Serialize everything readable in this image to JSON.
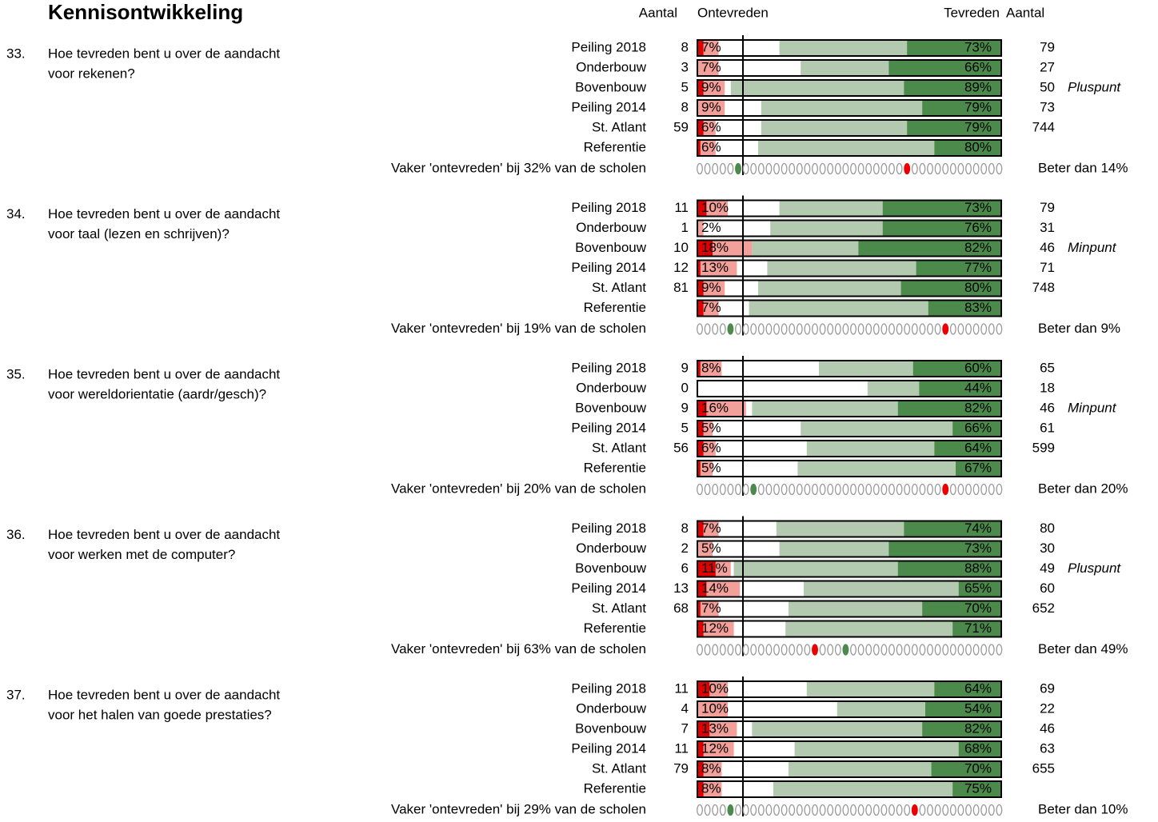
{
  "chart_data": {
    "type": "bar",
    "title": "Kennisontwikkeling",
    "header": {
      "n_left": "Aantal",
      "unsat": "Ontevreden",
      "sat": "Tevreden",
      "n_right": "Aantal"
    },
    "xlim": [
      0,
      100
    ],
    "reference_line": 15,
    "dots": 40,
    "colors": {
      "very_unsat": "#e00000",
      "unsat": "#f4a09a",
      "sat": "#b3c9b0",
      "very_sat": "#4b8a4b",
      "green_dot": "#4b8a4b",
      "red_dot": "#ee0000"
    },
    "questions": [
      {
        "number": "33.",
        "lines": [
          "Hoe tevreden bent u over de aandacht",
          "voor rekenen?"
        ],
        "footer": "Vaker 'ontevreden' bij 32% van de scholen",
        "better": "Beter dan 14%",
        "green_dot": 5,
        "red_dot": 27,
        "rows": [
          {
            "label": "Peiling 2018",
            "n_unsat": 8,
            "very_unsat": 2,
            "unsat": 7,
            "unsat_label": "7%",
            "sat": 73,
            "sat_label": "73%",
            "very_sat": 31,
            "n": 79,
            "note": null
          },
          {
            "label": "Onderbouw",
            "n_unsat": 3,
            "very_unsat": 0,
            "unsat": 7,
            "unsat_label": "7%",
            "sat": 66,
            "sat_label": "66%",
            "very_sat": 37,
            "n": 27,
            "note": null
          },
          {
            "label": "Bovenbouw",
            "n_unsat": 5,
            "very_unsat": 2,
            "unsat": 9,
            "unsat_label": "9%",
            "sat": 89,
            "sat_label": "89%",
            "very_sat": 32,
            "n": 50,
            "note": "Pluspunt"
          },
          {
            "label": "Peiling 2014",
            "n_unsat": 8,
            "very_unsat": 0,
            "unsat": 9,
            "unsat_label": "9%",
            "sat": 79,
            "sat_label": "79%",
            "very_sat": 26,
            "n": 73,
            "note": null
          },
          {
            "label": "St. Atlant",
            "n_unsat": 59,
            "very_unsat": 2,
            "unsat": 6,
            "unsat_label": "6%",
            "sat": 79,
            "sat_label": "79%",
            "very_sat": 31,
            "n": 744,
            "note": null
          },
          {
            "label": "Referentie",
            "n_unsat": null,
            "very_unsat": 1,
            "unsat": 6,
            "unsat_label": "6%",
            "sat": 80,
            "sat_label": "80%",
            "very_sat": 22,
            "n": null,
            "note": null
          }
        ]
      },
      {
        "number": "34.",
        "lines": [
          "Hoe tevreden bent u over de aandacht",
          "voor taal (lezen en schrijven)?"
        ],
        "footer": "Vaker 'ontevreden' bij 19% van de scholen",
        "better": "Beter dan 9%",
        "green_dot": 4,
        "red_dot": 32,
        "rows": [
          {
            "label": "Peiling 2018",
            "n_unsat": 11,
            "very_unsat": 3,
            "unsat": 10,
            "unsat_label": "10%",
            "sat": 73,
            "sat_label": "73%",
            "very_sat": 39,
            "n": 79,
            "note": null
          },
          {
            "label": "Onderbouw",
            "n_unsat": 1,
            "very_unsat": 0,
            "unsat": 2,
            "unsat_label": "2%",
            "sat": 76,
            "sat_label": "76%",
            "very_sat": 39,
            "n": 31,
            "note": null
          },
          {
            "label": "Bovenbouw",
            "n_unsat": 10,
            "very_unsat": 5,
            "unsat": 18,
            "unsat_label": "18%",
            "sat": 82,
            "sat_label": "82%",
            "very_sat": 47,
            "n": 46,
            "note": "Minpunt"
          },
          {
            "label": "Peiling 2014",
            "n_unsat": 12,
            "very_unsat": 1,
            "unsat": 13,
            "unsat_label": "13%",
            "sat": 77,
            "sat_label": "77%",
            "very_sat": 28,
            "n": 71,
            "note": null
          },
          {
            "label": "St. Atlant",
            "n_unsat": 81,
            "very_unsat": 2,
            "unsat": 9,
            "unsat_label": "9%",
            "sat": 80,
            "sat_label": "80%",
            "very_sat": 33,
            "n": 748,
            "note": null
          },
          {
            "label": "Referentie",
            "n_unsat": null,
            "very_unsat": 2,
            "unsat": 7,
            "unsat_label": "7%",
            "sat": 83,
            "sat_label": "83%",
            "very_sat": 24,
            "n": null,
            "note": null
          }
        ]
      },
      {
        "number": "35.",
        "lines": [
          "Hoe tevreden bent u over de aandacht",
          "voor wereldorientatie (aardr/gesch)?"
        ],
        "footer": "Vaker 'ontevreden' bij 20% van de scholen",
        "better": "Beter dan 20%",
        "green_dot": 7,
        "red_dot": 32,
        "rows": [
          {
            "label": "Peiling 2018",
            "n_unsat": 9,
            "very_unsat": 1,
            "unsat": 8,
            "unsat_label": "8%",
            "sat": 60,
            "sat_label": "60%",
            "very_sat": 29,
            "n": 65,
            "note": null
          },
          {
            "label": "Onderbouw",
            "n_unsat": 0,
            "very_unsat": 0,
            "unsat": null,
            "unsat_label": null,
            "sat": 44,
            "sat_label": "44%",
            "very_sat": 27,
            "n": 18,
            "note": null
          },
          {
            "label": "Bovenbouw",
            "n_unsat": 9,
            "very_unsat": 3,
            "unsat": 16,
            "unsat_label": "16%",
            "sat": 82,
            "sat_label": "82%",
            "very_sat": 34,
            "n": 46,
            "note": "Minpunt"
          },
          {
            "label": "Peiling 2014",
            "n_unsat": 5,
            "very_unsat": 2,
            "unsat": 5,
            "unsat_label": "5%",
            "sat": 66,
            "sat_label": "66%",
            "very_sat": 16,
            "n": 61,
            "note": null
          },
          {
            "label": "St. Atlant",
            "n_unsat": 56,
            "very_unsat": 2,
            "unsat": 6,
            "unsat_label": "6%",
            "sat": 64,
            "sat_label": "64%",
            "very_sat": 22,
            "n": 599,
            "note": null
          },
          {
            "label": "Referentie",
            "n_unsat": null,
            "very_unsat": 1,
            "unsat": 5,
            "unsat_label": "5%",
            "sat": 67,
            "sat_label": "67%",
            "very_sat": 15,
            "n": null,
            "note": null
          }
        ]
      },
      {
        "number": "36.",
        "lines": [
          "Hoe tevreden bent u over de aandacht",
          "voor werken met de computer?"
        ],
        "footer": "Vaker 'ontevreden' bij 63% van de scholen",
        "better": "Beter dan 49%",
        "green_dot": 19,
        "red_dot": 15,
        "rows": [
          {
            "label": "Peiling 2018",
            "n_unsat": 8,
            "very_unsat": 2,
            "unsat": 7,
            "unsat_label": "7%",
            "sat": 74,
            "sat_label": "74%",
            "very_sat": 32,
            "n": 80,
            "note": null
          },
          {
            "label": "Onderbouw",
            "n_unsat": 2,
            "very_unsat": 0,
            "unsat": 5,
            "unsat_label": "5%",
            "sat": 73,
            "sat_label": "73%",
            "very_sat": 37,
            "n": 30,
            "note": null
          },
          {
            "label": "Bovenbouw",
            "n_unsat": 6,
            "very_unsat": 6,
            "unsat": 11,
            "unsat_label": "11%",
            "sat": 88,
            "sat_label": "88%",
            "very_sat": 34,
            "n": 49,
            "note": "Pluspunt"
          },
          {
            "label": "Peiling 2014",
            "n_unsat": 13,
            "very_unsat": 3,
            "unsat": 14,
            "unsat_label": "14%",
            "sat": 65,
            "sat_label": "65%",
            "very_sat": 14,
            "n": 60,
            "note": null
          },
          {
            "label": "St. Atlant",
            "n_unsat": 68,
            "very_unsat": 1,
            "unsat": 7,
            "unsat_label": "7%",
            "sat": 70,
            "sat_label": "70%",
            "very_sat": 26,
            "n": 652,
            "note": null
          },
          {
            "label": "Referentie",
            "n_unsat": null,
            "very_unsat": 2,
            "unsat": 12,
            "unsat_label": "12%",
            "sat": 71,
            "sat_label": "71%",
            "very_sat": 16,
            "n": null,
            "note": null
          }
        ]
      },
      {
        "number": "37.",
        "lines": [
          "Hoe tevreden bent u over de aandacht",
          "voor het halen van goede prestaties?"
        ],
        "footer": "Vaker 'ontevreden' bij 29% van de scholen",
        "better": "Beter dan 10%",
        "green_dot": 4,
        "red_dot": 28,
        "rows": [
          {
            "label": "Peiling 2018",
            "n_unsat": 11,
            "very_unsat": 4,
            "unsat": 10,
            "unsat_label": "10%",
            "sat": 64,
            "sat_label": "64%",
            "very_sat": 22,
            "n": 69,
            "note": null
          },
          {
            "label": "Onderbouw",
            "n_unsat": 4,
            "very_unsat": 0,
            "unsat": 10,
            "unsat_label": "10%",
            "sat": 54,
            "sat_label": "54%",
            "very_sat": 25,
            "n": 22,
            "note": null
          },
          {
            "label": "Bovenbouw",
            "n_unsat": 7,
            "very_unsat": 4,
            "unsat": 13,
            "unsat_label": "13%",
            "sat": 82,
            "sat_label": "82%",
            "very_sat": 26,
            "n": 46,
            "note": null
          },
          {
            "label": "Peiling 2014",
            "n_unsat": 11,
            "very_unsat": 2,
            "unsat": 12,
            "unsat_label": "12%",
            "sat": 68,
            "sat_label": "68%",
            "very_sat": 14,
            "n": 63,
            "note": null
          },
          {
            "label": "St. Atlant",
            "n_unsat": 79,
            "very_unsat": 2,
            "unsat": 8,
            "unsat_label": "8%",
            "sat": 70,
            "sat_label": "70%",
            "very_sat": 23,
            "n": 655,
            "note": null
          },
          {
            "label": "Referentie",
            "n_unsat": null,
            "very_unsat": 2,
            "unsat": 8,
            "unsat_label": "8%",
            "sat": 75,
            "sat_label": "75%",
            "very_sat": 16,
            "n": null,
            "note": null
          }
        ]
      }
    ]
  }
}
